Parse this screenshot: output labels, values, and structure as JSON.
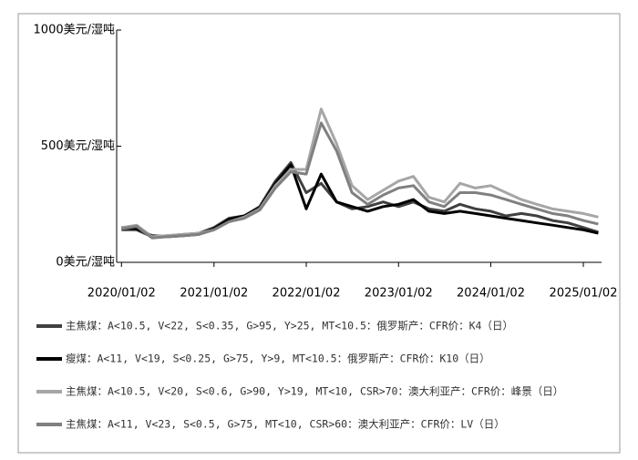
{
  "chart_data": {
    "type": "line",
    "x": [
      "2020/01/02",
      "2020/03/02",
      "2020/05/02",
      "2020/07/02",
      "2020/09/02",
      "2020/11/02",
      "2021/01/02",
      "2021/03/02",
      "2021/05/02",
      "2021/07/02",
      "2021/09/02",
      "2021/11/02",
      "2022/01/02",
      "2022/03/02",
      "2022/05/02",
      "2022/07/02",
      "2022/09/02",
      "2022/11/02",
      "2023/01/02",
      "2023/03/02",
      "2023/05/02",
      "2023/07/02",
      "2023/09/02",
      "2023/11/02",
      "2024/01/02",
      "2024/03/02",
      "2024/05/02",
      "2024/07/02",
      "2024/09/02",
      "2024/11/02",
      "2025/01/02",
      "2025/03/02"
    ],
    "series": [
      {
        "name": "主焦煤：A<10.5, V<22, S<0.35, G>95, Y>25, MT<10.5：俄罗斯产：CFR价：K4（日）",
        "color": "#404040",
        "values": [
          140,
          140,
          110,
          115,
          120,
          125,
          150,
          190,
          200,
          240,
          350,
          430,
          300,
          340,
          260,
          230,
          240,
          260,
          240,
          260,
          230,
          220,
          250,
          230,
          220,
          200,
          210,
          200,
          180,
          170,
          150,
          130
        ]
      },
      {
        "name": "瘦煤：A<11, V<19, S<0.25, G>75, Y>9, MT<10.5：俄罗斯产：CFR价：K10（日）",
        "color": "#000000",
        "values": [
          150,
          145,
          115,
          110,
          115,
          120,
          145,
          185,
          200,
          235,
          340,
          420,
          230,
          380,
          260,
          240,
          220,
          240,
          250,
          270,
          220,
          210,
          220,
          210,
          200,
          190,
          180,
          170,
          160,
          150,
          140,
          125
        ]
      },
      {
        "name": "主焦煤：A<10.5, V<20, S<0.6, G>90, Y>19, MT<10, CSR>70：澳大利亚产：CFR价：峰景（日）",
        "color": "#a6a6a6",
        "values": [
          150,
          160,
          110,
          115,
          120,
          125,
          140,
          175,
          195,
          230,
          330,
          400,
          400,
          660,
          510,
          330,
          270,
          310,
          350,
          370,
          280,
          260,
          340,
          320,
          330,
          300,
          270,
          250,
          230,
          220,
          210,
          195
        ]
      },
      {
        "name": "主焦煤：A<11, V<23, S<0.5, G>75, MT<10, CSR>60：澳大利亚产：CFR价：LV（日）",
        "color": "#808080",
        "values": [
          145,
          155,
          105,
          110,
          115,
          120,
          140,
          175,
          190,
          225,
          320,
          390,
          380,
          600,
          480,
          300,
          250,
          290,
          320,
          330,
          260,
          240,
          300,
          300,
          290,
          270,
          250,
          230,
          210,
          200,
          180,
          165
        ]
      }
    ],
    "xlim": [
      "2019/12/14",
      "2025/03/15"
    ],
    "xticks": [
      "2020/01/02",
      "2021/01/02",
      "2022/01/02",
      "2023/01/02",
      "2024/01/02",
      "2025/01/02"
    ],
    "ylim": [
      0,
      1000
    ],
    "yticks": [
      {
        "value": 0,
        "label": "0美元/湿吨"
      },
      {
        "value": 500,
        "label": "500美元/湿吨"
      },
      {
        "value": 1000,
        "label": "1000美元/湿吨"
      }
    ]
  }
}
